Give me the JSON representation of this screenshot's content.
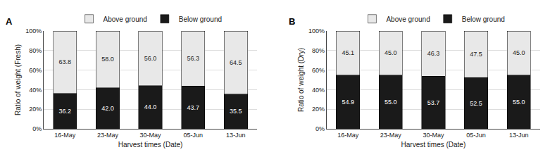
{
  "chart_data": [
    {
      "type": "bar",
      "title": "A",
      "stacked": true,
      "categories": [
        "16-May",
        "23-May",
        "30-May",
        "05-Jun",
        "13-Jun"
      ],
      "series": [
        {
          "name": "Below ground",
          "color": "#1a1a1a",
          "values": [
            36.2,
            42.0,
            44.0,
            43.7,
            35.5
          ],
          "value_labels": [
            "36.2",
            "42.0",
            "44.0",
            "43.7",
            "35.5"
          ]
        },
        {
          "name": "Above ground",
          "color": "#e8e8e8",
          "values": [
            63.8,
            58.0,
            56.0,
            56.3,
            64.5
          ],
          "value_labels": [
            "63.8",
            "58.0",
            "56.0",
            "56.3",
            "64.5"
          ]
        }
      ],
      "xlabel": "Harvest times (Date)",
      "ylabel": "Ratio of weight (Fresh)",
      "ylim": [
        0,
        100
      ],
      "yticks": [
        {
          "value": 0,
          "label": "0%"
        },
        {
          "value": 20,
          "label": "20%"
        },
        {
          "value": 40,
          "label": "40%"
        },
        {
          "value": 60,
          "label": "60%"
        },
        {
          "value": 80,
          "label": "80%"
        },
        {
          "value": 100,
          "label": "100%"
        }
      ],
      "grid": true,
      "data_labels": true,
      "legend": "top"
    },
    {
      "type": "bar",
      "title": "B",
      "stacked": true,
      "categories": [
        "16-May",
        "23-May",
        "30-May",
        "05-Jun",
        "13-Jun"
      ],
      "series": [
        {
          "name": "Below ground",
          "color": "#1a1a1a",
          "values": [
            54.9,
            55.0,
            53.7,
            52.5,
            55.0
          ],
          "value_labels": [
            "54.9",
            "55.0",
            "53.7",
            "52.5",
            "55.0"
          ]
        },
        {
          "name": "Above ground",
          "color": "#e8e8e8",
          "values": [
            45.1,
            45.0,
            46.3,
            47.5,
            45.0
          ],
          "value_labels": [
            "45.1",
            "45.0",
            "46.3",
            "47.5",
            "45.0"
          ]
        }
      ],
      "xlabel": "Harvest times (Date)",
      "ylabel": "Ratio of weight (Dry)",
      "ylim": [
        0,
        100
      ],
      "yticks": [
        {
          "value": 0,
          "label": "0%"
        },
        {
          "value": 20,
          "label": "20%"
        },
        {
          "value": 40,
          "label": "40%"
        },
        {
          "value": 60,
          "label": "60%"
        },
        {
          "value": 80,
          "label": "80%"
        },
        {
          "value": 100,
          "label": "100%"
        }
      ],
      "grid": true,
      "data_labels": true,
      "legend": "top"
    }
  ]
}
